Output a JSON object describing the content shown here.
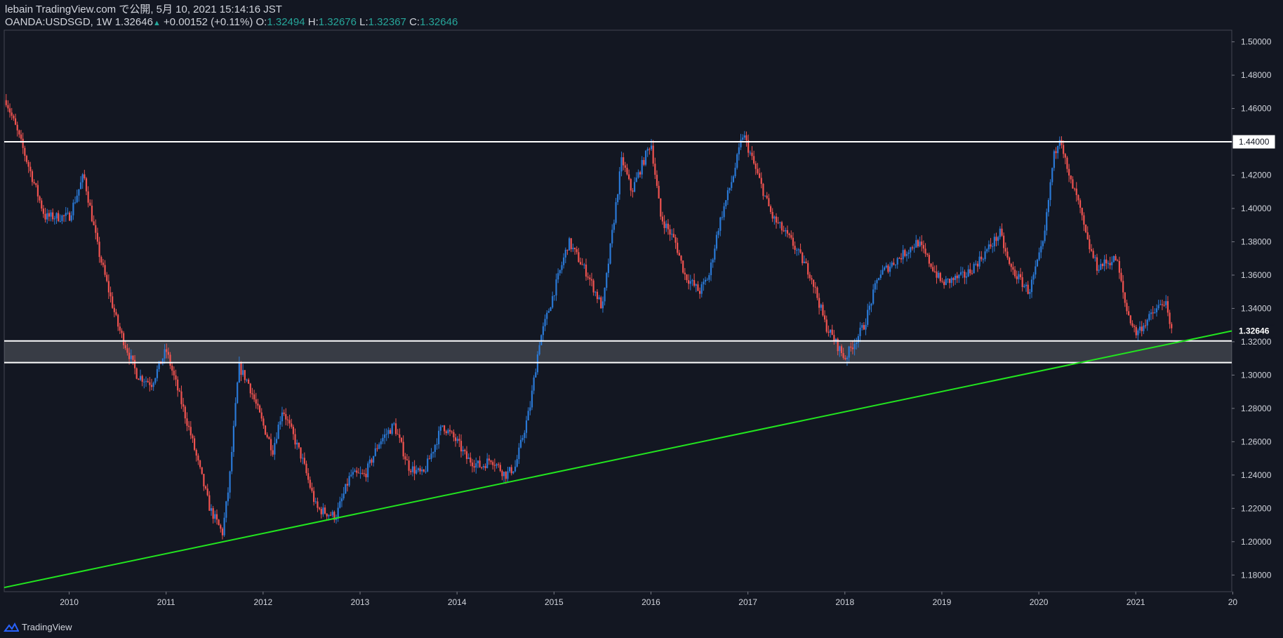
{
  "header": {
    "author_line": "lebain TradingView.com で公開, 5月 10, 2021 15:14:16 JST",
    "symbol": "OANDA:USDSGD, 1W",
    "last": "1.32646",
    "change": "+0.00152 (+0.11%)",
    "o_label": "O:",
    "o_value": "1.32494",
    "h_label": "H:",
    "h_value": "1.32676",
    "l_label": "L:",
    "l_value": "1.32367",
    "c_label": "C:",
    "c_value": "1.32646"
  },
  "footer": {
    "brand": "TradingView"
  },
  "colors": {
    "up": "#2a79d6",
    "down": "#ef5350",
    "trendline": "#22e51f",
    "level": "#ffffff",
    "background": "#131722"
  },
  "chart_data": {
    "type": "line",
    "ylim": [
      1.17,
      1.507
    ],
    "xlim": [
      2009.33,
      2021.99
    ],
    "y_ticks": [
      "1.18000",
      "1.20000",
      "1.22000",
      "1.24000",
      "1.26000",
      "1.28000",
      "1.30000",
      "1.32000",
      "1.34000",
      "1.36000",
      "1.38000",
      "1.40000",
      "1.42000",
      "1.44000",
      "1.46000",
      "1.48000",
      "1.50000"
    ],
    "x_ticks": [
      "2010",
      "2011",
      "2012",
      "2013",
      "2014",
      "2015",
      "2016",
      "2017",
      "2018",
      "2019",
      "2020",
      "2021",
      "20"
    ],
    "price_labels": [
      {
        "text": "1.44000",
        "value": 1.44,
        "style": "level"
      },
      {
        "text": "1.32646",
        "value": 1.32646,
        "style": "last"
      }
    ],
    "horizontal_levels": [
      1.44,
      1.3205,
      1.3075
    ],
    "support_zone": [
      1.3075,
      1.3205
    ],
    "trendline": {
      "x": [
        2009.33,
        2021.99
      ],
      "y": [
        1.1725,
        1.3265
      ]
    },
    "series": [
      {
        "x": [
          2009.35,
          2009.5,
          2009.75,
          2010.0,
          2010.15,
          2010.3,
          2010.5,
          2010.7,
          2010.85,
          2011.0,
          2011.25,
          2011.45,
          2011.58,
          2011.65,
          2011.75,
          2011.85,
          2012.0,
          2012.1,
          2012.2,
          2012.4,
          2012.55,
          2012.75,
          2012.9,
          2013.05,
          2013.2,
          2013.35,
          2013.5,
          2013.65,
          2013.85,
          2014.0,
          2014.1,
          2014.25,
          2014.35,
          2014.5,
          2014.6,
          2014.75,
          2014.85,
          2015.0,
          2015.15,
          2015.35,
          2015.5,
          2015.7,
          2015.8,
          2016.0,
          2016.1,
          2016.25,
          2016.35,
          2016.5,
          2016.6,
          2016.7,
          2016.85,
          2016.95,
          2017.1,
          2017.25,
          2017.45,
          2017.65,
          2017.8,
          2018.0,
          2018.1,
          2018.2,
          2018.35,
          2018.55,
          2018.75,
          2018.85,
          2019.0,
          2019.25,
          2019.4,
          2019.6,
          2019.7,
          2019.9,
          2020.05,
          2020.15,
          2020.22,
          2020.3,
          2020.4,
          2020.5,
          2020.6,
          2020.8,
          2020.9,
          2021.0,
          2021.15,
          2021.3,
          2021.36
        ],
        "values": [
          1.465,
          1.44,
          1.395,
          1.395,
          1.42,
          1.375,
          1.33,
          1.3,
          1.295,
          1.315,
          1.265,
          1.22,
          1.205,
          1.235,
          1.305,
          1.295,
          1.27,
          1.255,
          1.28,
          1.25,
          1.22,
          1.215,
          1.24,
          1.24,
          1.26,
          1.27,
          1.245,
          1.24,
          1.27,
          1.26,
          1.25,
          1.245,
          1.25,
          1.24,
          1.245,
          1.28,
          1.32,
          1.35,
          1.38,
          1.36,
          1.34,
          1.43,
          1.41,
          1.44,
          1.395,
          1.38,
          1.36,
          1.35,
          1.36,
          1.39,
          1.42,
          1.445,
          1.42,
          1.395,
          1.38,
          1.36,
          1.33,
          1.31,
          1.32,
          1.33,
          1.36,
          1.37,
          1.38,
          1.37,
          1.355,
          1.36,
          1.37,
          1.385,
          1.365,
          1.35,
          1.38,
          1.43,
          1.445,
          1.42,
          1.405,
          1.38,
          1.365,
          1.37,
          1.34,
          1.325,
          1.335,
          1.345,
          1.3265
        ]
      }
    ]
  }
}
